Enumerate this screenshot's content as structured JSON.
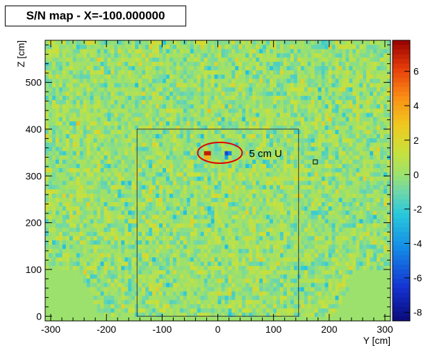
{
  "chart_data": {
    "type": "heatmap",
    "title": "S/N map - X=-100.000000",
    "xlabel": "Y [cm]",
    "ylabel": "Z [cm]",
    "xlim": [
      -310,
      310
    ],
    "ylim": [
      -10,
      590
    ],
    "xticks": [
      -300,
      -200,
      -100,
      0,
      100,
      200,
      300
    ],
    "yticks": [
      0,
      100,
      200,
      300,
      400,
      500
    ],
    "colorbar": {
      "range": [
        -8.5,
        7.8
      ],
      "ticks": [
        6,
        4,
        2,
        0,
        -2,
        -4,
        -6,
        -8
      ],
      "palette": "rainbow"
    },
    "grid": false,
    "background_value": 0,
    "noise_sigma": 1.0,
    "region_box": {
      "y_min": -145,
      "y_max": 145,
      "z_min": 0,
      "z_max": 400
    },
    "hot_spots": [
      {
        "y": -18,
        "z": 350,
        "value": 7.0
      },
      {
        "y": -18,
        "z": 340,
        "value": 3.5
      },
      {
        "y": 15,
        "z": 350,
        "value": -6.0
      },
      {
        "y": 15,
        "z": 340,
        "value": -3.5
      },
      {
        "y": 20,
        "z": 350,
        "value": -4.5
      }
    ],
    "marked_cell": {
      "y": 175,
      "z": 330
    },
    "annotation": {
      "text": "5 cm U",
      "y": 0,
      "z": 345
    }
  }
}
